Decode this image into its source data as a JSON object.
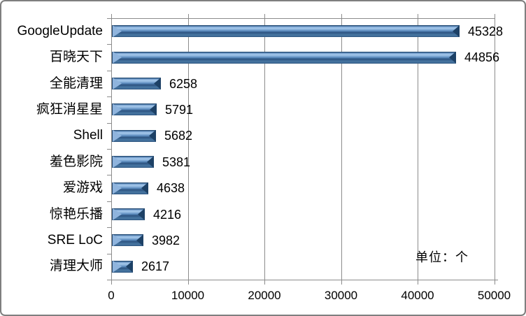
{
  "chart_data": {
    "type": "bar",
    "orientation": "horizontal",
    "title": "",
    "categories": [
      "GoogleUpdate",
      "百晓天下",
      "全能清理",
      "疯狂消星星",
      "Shell",
      "羞色影院",
      "爱游戏",
      "惊艳乐播",
      "SRE LoC",
      "清理大师"
    ],
    "values": [
      45328,
      44856,
      6258,
      5791,
      5682,
      5381,
      4638,
      4216,
      3982,
      2617
    ],
    "data_label_position": "outside-end",
    "x_tick_labels": [
      "0",
      "10000",
      "20000",
      "30000",
      "40000",
      "50000"
    ],
    "xlim": [
      0,
      50000
    ],
    "xlabel": "",
    "ylabel": "",
    "grid": "vertical-major",
    "legend": "none",
    "bar_style": "3d-bevel",
    "annotation": {
      "text": "单位：个",
      "position": "bottom-right"
    }
  },
  "colors": {
    "bar_base": "#4f81bd",
    "bar_highlight": "#a6c8ea",
    "bar_dark_edge": "#1c3c5e",
    "gridline": "#8c8c8c",
    "axis": "#8c8c8c",
    "frame_border": "#7f7f7f",
    "text": "#000000",
    "background": "#ffffff"
  }
}
